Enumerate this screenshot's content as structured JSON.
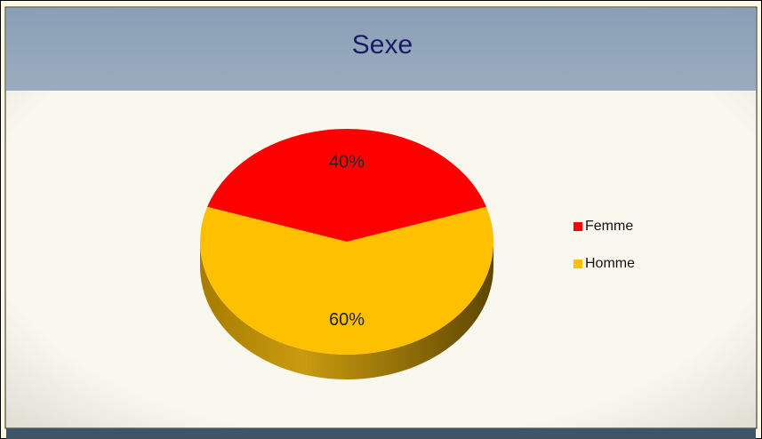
{
  "chart_data": {
    "type": "pie",
    "title": "Sexe",
    "categories": [
      "Femme",
      "Homme"
    ],
    "values": [
      40,
      60
    ],
    "value_labels": [
      "40%",
      "60%"
    ],
    "colors": [
      "#ff0000",
      "#ffc000"
    ],
    "legend": "right"
  }
}
